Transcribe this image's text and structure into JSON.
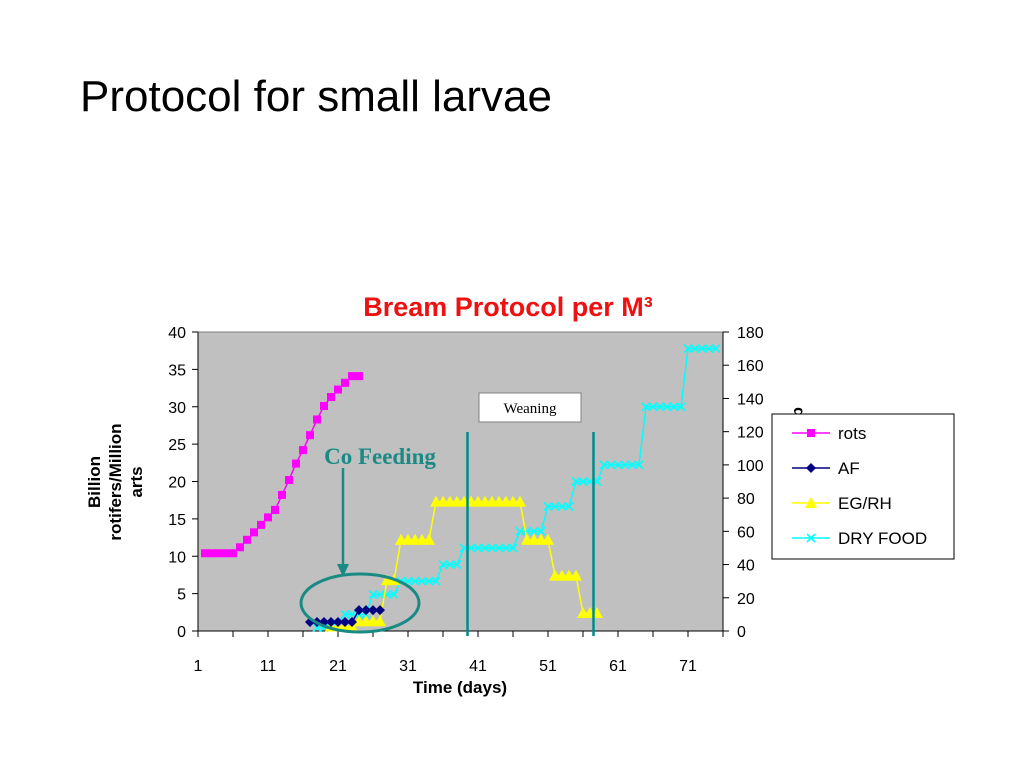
{
  "slide": {
    "title": "Protocol for small larvae"
  },
  "chart_data": {
    "type": "line",
    "title": "Bream Protocol per M³",
    "xlabel": "Time (days)",
    "ylabel": "Billion rotifers/Million arts",
    "ylabel_lines": [
      "Billion",
      "rotifers/Million",
      "arts"
    ],
    "y2label_fragment": "d",
    "xlim": [
      1,
      76
    ],
    "ylim": [
      0,
      40
    ],
    "y2lim": [
      0,
      180
    ],
    "x_ticks": [
      1,
      11,
      21,
      31,
      41,
      51,
      61,
      71
    ],
    "y_ticks": [
      0,
      5,
      10,
      15,
      20,
      25,
      30,
      35,
      40
    ],
    "y2_ticks": [
      0,
      20,
      40,
      60,
      80,
      100,
      120,
      140,
      160,
      180
    ],
    "grid": false,
    "plot_background": "#c0c0c0",
    "legend_position": "right",
    "series": [
      {
        "name": "rots",
        "axis": "left",
        "color": "#ff00ff",
        "marker": "square",
        "x": [
          2,
          3,
          4,
          5,
          6,
          7,
          8,
          9,
          10,
          11,
          12,
          13,
          14,
          15,
          16,
          17,
          18,
          19,
          20,
          21,
          22,
          23,
          24
        ],
        "y": [
          10.4,
          10.4,
          10.4,
          10.4,
          10.4,
          11.2,
          12.2,
          13.2,
          14.2,
          15.2,
          16.2,
          18.2,
          20.2,
          22.4,
          24.2,
          26.2,
          28.3,
          30.1,
          31.3,
          32.3,
          33.2,
          34.1,
          34.1
        ]
      },
      {
        "name": "AF",
        "axis": "left",
        "color": "#000080",
        "marker": "diamond",
        "x": [
          17,
          18,
          19,
          20,
          21,
          22,
          23,
          24,
          25,
          26,
          27
        ],
        "y": [
          1.2,
          1.2,
          1.2,
          1.2,
          1.2,
          1.2,
          1.2,
          2.8,
          2.8,
          2.8,
          2.8
        ]
      },
      {
        "name": "EG/RH",
        "axis": "left",
        "color": "#ffff00",
        "marker": "triangle",
        "x": [
          20,
          21,
          22,
          23,
          24,
          25,
          26,
          27,
          28,
          29,
          30,
          31,
          32,
          33,
          34,
          35,
          36,
          37,
          38,
          39,
          40,
          41,
          42,
          43,
          44,
          45,
          46,
          47,
          48,
          49,
          50,
          51,
          52,
          53,
          54,
          55,
          56,
          57,
          58
        ],
        "y": [
          0.6,
          0.6,
          0.6,
          0.6,
          1.3,
          1.3,
          1.3,
          1.3,
          6.8,
          6.8,
          12.2,
          12.2,
          12.2,
          12.2,
          12.2,
          17.3,
          17.3,
          17.3,
          17.3,
          17.3,
          17.3,
          17.3,
          17.3,
          17.3,
          17.3,
          17.3,
          17.3,
          17.3,
          12.2,
          12.2,
          12.2,
          12.2,
          7.4,
          7.4,
          7.4,
          7.4,
          2.4,
          2.4,
          2.4
        ]
      },
      {
        "name": "DRY FOOD",
        "axis": "right",
        "color": "#00ffff",
        "marker": "x",
        "x": [
          18,
          19,
          20,
          21,
          22,
          23,
          24,
          25,
          26,
          27,
          28,
          29,
          30,
          31,
          32,
          33,
          34,
          35,
          36,
          37,
          38,
          39,
          40,
          41,
          42,
          43,
          44,
          45,
          46,
          47,
          48,
          49,
          50,
          51,
          52,
          53,
          54,
          55,
          56,
          57,
          58,
          59,
          60,
          61,
          62,
          63,
          64,
          65,
          66,
          67,
          68,
          69,
          70,
          71,
          72,
          73,
          74,
          75
        ],
        "y": [
          2,
          2,
          4,
          4,
          10,
          10,
          10,
          10,
          22,
          22,
          22,
          22,
          30,
          30,
          30,
          30,
          30,
          30,
          40,
          40,
          40,
          50,
          50,
          50,
          50,
          50,
          50,
          50,
          50,
          60,
          60,
          60,
          60,
          75,
          75,
          75,
          75,
          90,
          90,
          90,
          90,
          100,
          100,
          100,
          100,
          100,
          100,
          135,
          135,
          135,
          135,
          135,
          135,
          170,
          170,
          170,
          170,
          170
        ]
      }
    ],
    "annotations": {
      "co_feeding": "Co Feeding",
      "weaning": "Weaning",
      "weaning_lines_x": [
        39.5,
        57.5
      ]
    }
  }
}
